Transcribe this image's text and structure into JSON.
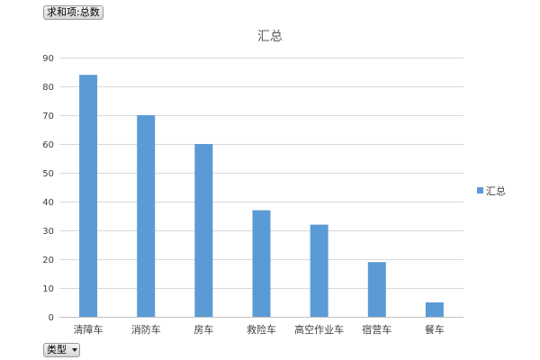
{
  "pivot": {
    "value_field_button": "求和项:总数",
    "axis_field_button": "类型"
  },
  "colors": {
    "bar": "#5b9bd5",
    "grid": "#d9d9d9",
    "axis": "#bfbfbf"
  },
  "chart_data": {
    "type": "bar",
    "title": "汇总",
    "xlabel": "",
    "ylabel": "",
    "categories": [
      "清障车",
      "消防车",
      "房车",
      "救险车",
      "高空作业车",
      "宿营车",
      "餐车"
    ],
    "series": [
      {
        "name": "汇总",
        "values": [
          84,
          70,
          60,
          37,
          32,
          19,
          5
        ]
      }
    ],
    "ylim": [
      0,
      90
    ],
    "yticks": [
      0,
      10,
      20,
      30,
      40,
      50,
      60,
      70,
      80,
      90
    ],
    "grid": true,
    "legend": "right"
  }
}
